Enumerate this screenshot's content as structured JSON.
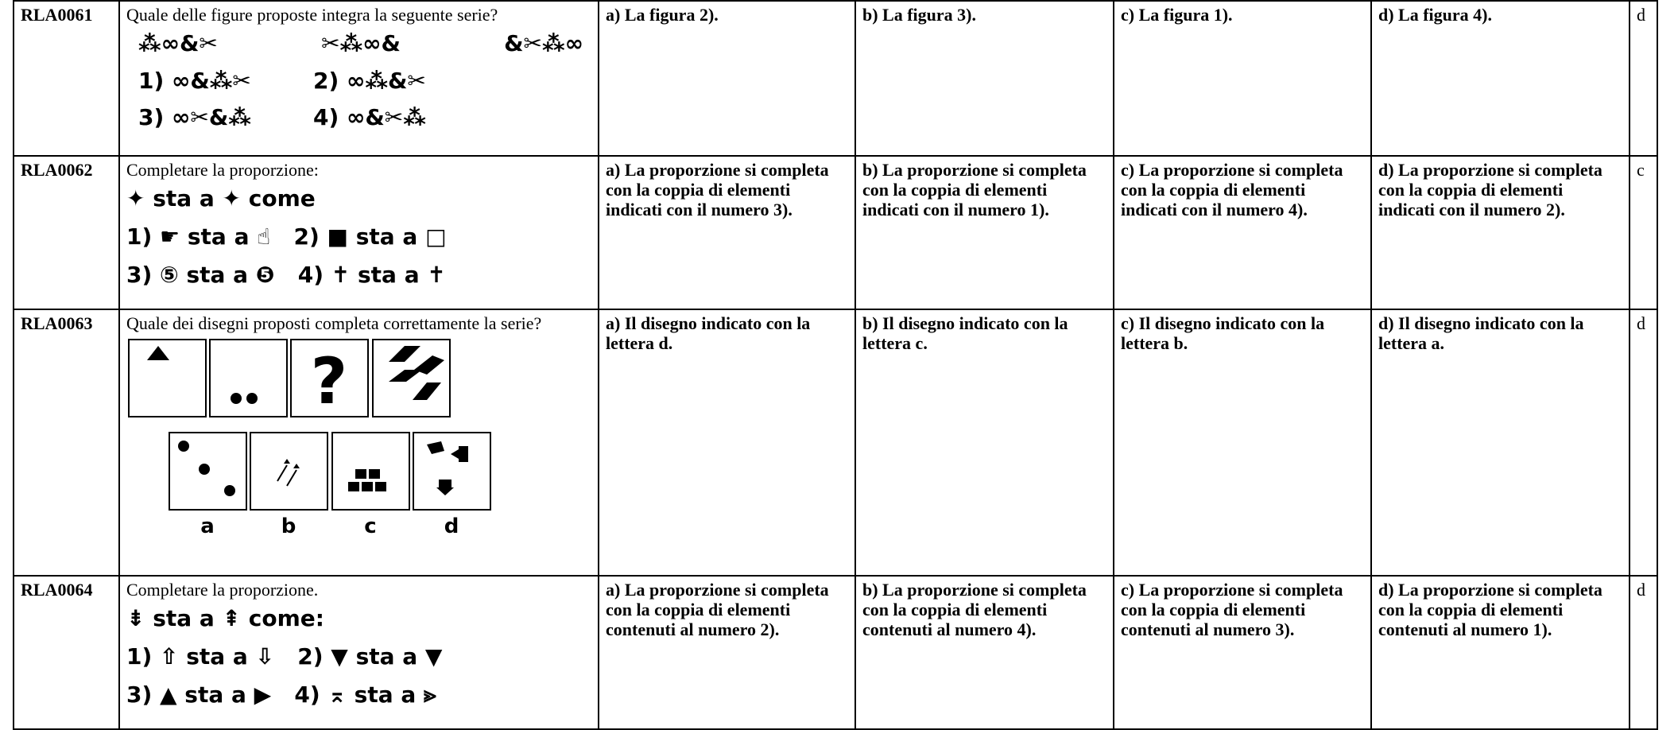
{
  "rows": [
    {
      "code": "RLA0061",
      "question": "Quale delle figure proposte integra la seguente serie?",
      "figure": {
        "series": [
          "⁂∞&✂",
          "✂⁂∞&",
          "&✂⁂∞"
        ],
        "choices": [
          "1) ∞&⁂✂",
          "2) ∞⁂&✂",
          "3) ∞✂&⁂",
          "4) ∞&✂⁂"
        ]
      },
      "options": [
        "a) La figura 2).",
        "b) La figura 3).",
        "c) La figura 1).",
        "d) La figura 4)."
      ],
      "answer": "d"
    },
    {
      "code": "RLA0062",
      "question": "Completare la proporzione:",
      "figure": {
        "lines": [
          "✦ sta a ✦ come",
          "1) ☛ sta a ☝   2) ■ sta a □",
          "3) ⑤ sta a ❺   4) ✝ sta a ✝"
        ]
      },
      "options": [
        "a) La proporzione si completa con la coppia di elementi indicati con il numero 3).",
        "b) La proporzione si completa con la coppia di elementi indicati con il numero 1).",
        "c) La proporzione si completa con la coppia di elementi indicati con il numero 4).",
        "d) La proporzione si completa con la coppia di elementi indicati con il numero 2)."
      ],
      "answer": "c"
    },
    {
      "code": "RLA0063",
      "question": "Quale dei disegni proposti completa correttamente la serie?",
      "figure": {
        "mark": "?",
        "labels": [
          "a",
          "b",
          "c",
          "d"
        ]
      },
      "options": [
        "a) Il disegno indicato con la lettera d.",
        "b) Il disegno indicato con la lettera c.",
        "c) Il disegno indicato con la lettera b.",
        "d) Il disegno indicato con la lettera a."
      ],
      "answer": "d"
    },
    {
      "code": "RLA0064",
      "question": "Completare la proporzione.",
      "figure": {
        "lines": [
          "⇟ sta a ⇞ come:",
          "1) ⇧ sta a ⇩   2) ▼ sta a ▼",
          "3) ▲ sta a ▶   4) ⌅ sta a ⪢"
        ]
      },
      "options": [
        "a) La proporzione si completa con la coppia di elementi contenuti al numero 2).",
        "b) La proporzione si completa con la coppia di elementi contenuti al numero 4).",
        "c) La proporzione si completa con la coppia di elementi contenuti al numero 3).",
        "d) La proporzione si completa con la coppia di elementi contenuti al numero 1)."
      ],
      "answer": "d"
    }
  ]
}
